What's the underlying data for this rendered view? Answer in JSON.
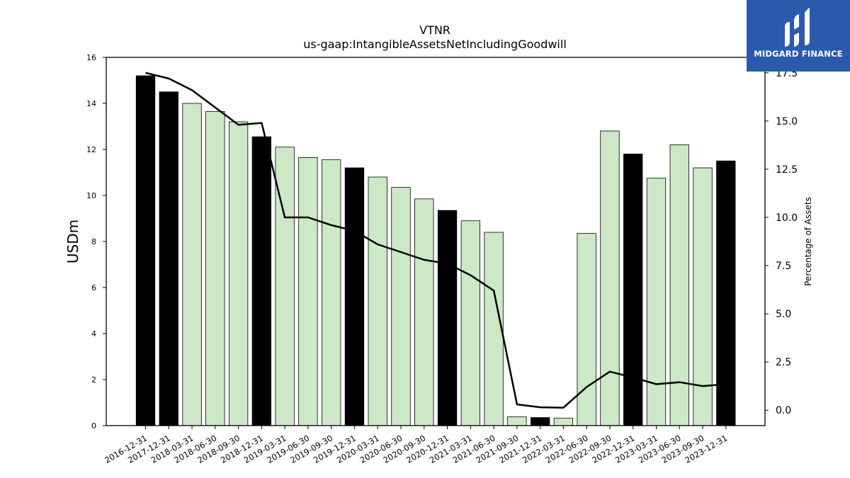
{
  "chart_data": {
    "type": "bar",
    "title": "VTNR",
    "subtitle": "us-gaap:IntangibleAssetsNetIncludingGoodwill",
    "ylabel": "USDm",
    "y2label": "Percentage of Assets",
    "ylim": [
      0,
      16
    ],
    "y2lim": [
      -0.8,
      18.3
    ],
    "yticks": [
      "0",
      "2",
      "4",
      "6",
      "8",
      "10",
      "12",
      "14",
      "16"
    ],
    "y2ticks": [
      "0.0",
      "2.5",
      "5.0",
      "7.5",
      "10.0",
      "12.5",
      "15.0",
      "17.5"
    ],
    "categories": [
      "2016-12-31",
      "2017-12-31",
      "2018-03-31",
      "2018-06-30",
      "2018-09-30",
      "2018-12-31",
      "2019-03-31",
      "2019-06-30",
      "2019-09-30",
      "2019-12-31",
      "2020-03-31",
      "2020-06-30",
      "2020-09-30",
      "2020-12-31",
      "2021-03-31",
      "2021-06-30",
      "2021-09-30",
      "2021-12-31",
      "2022-03-31",
      "2022-06-30",
      "2022-09-30",
      "2022-12-31",
      "2023-03-31",
      "2023-06-30",
      "2023-09-30",
      "2023-12-31"
    ],
    "series": [
      {
        "type": "bar",
        "values": [
          15.2,
          14.5,
          14.0,
          13.65,
          13.2,
          12.55,
          12.1,
          11.65,
          11.55,
          11.2,
          10.8,
          10.35,
          9.85,
          9.35,
          8.9,
          8.4,
          0.38,
          0.35,
          0.32,
          8.35,
          12.8,
          11.8,
          10.75,
          12.2,
          11.2,
          11.5
        ],
        "annual": [
          true,
          true,
          false,
          false,
          false,
          true,
          false,
          false,
          false,
          true,
          false,
          false,
          false,
          true,
          false,
          false,
          false,
          true,
          false,
          false,
          false,
          true,
          false,
          false,
          false,
          true
        ]
      },
      {
        "type": "line",
        "axis": "right",
        "values": [
          17.5,
          17.2,
          16.6,
          15.7,
          14.8,
          14.9,
          10.0,
          10.0,
          9.6,
          9.3,
          8.6,
          8.2,
          7.8,
          7.6,
          7.0,
          6.2,
          0.3,
          0.15,
          0.13,
          1.2,
          2.0,
          1.7,
          1.35,
          1.45,
          1.25,
          1.35
        ]
      }
    ],
    "colors": {
      "annual_bar": "#000000",
      "quarter_bar": "#cce8c7",
      "line": "#000000"
    },
    "grid": false,
    "legend": "none"
  },
  "logo": {
    "text": "MIDGARD FINANCE"
  }
}
